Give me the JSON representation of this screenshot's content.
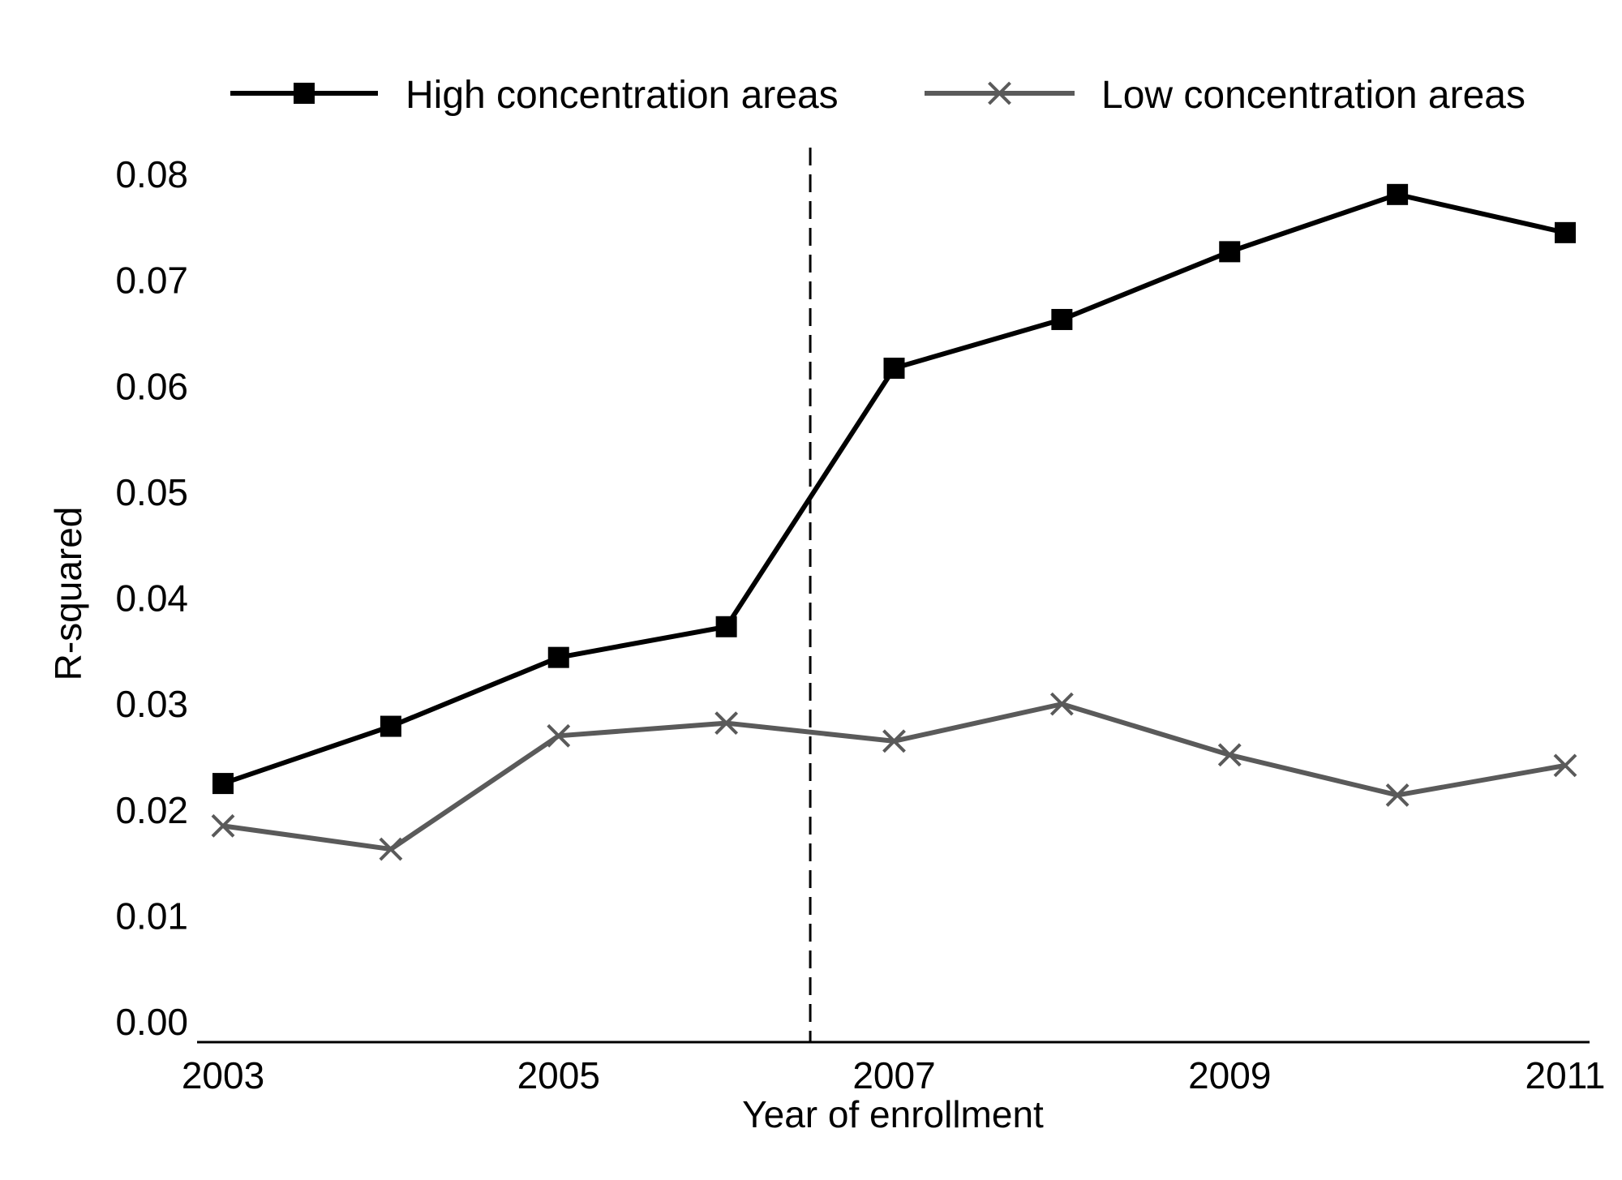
{
  "chart_data": {
    "type": "line",
    "title": "",
    "xlabel": "Year of enrollment",
    "ylabel": "R-squared",
    "x": [
      2003,
      2004,
      2005,
      2006,
      2007,
      2008,
      2009,
      2010,
      2011
    ],
    "xlim": [
      2003,
      2011
    ],
    "xticks": [
      2003,
      2005,
      2007,
      2009,
      2011
    ],
    "xtick_labels": [
      "2003",
      "2005",
      "2007",
      "2009",
      "2011"
    ],
    "ylim": [
      0,
      0.08
    ],
    "yticks": [
      0,
      0.01,
      0.02,
      0.03,
      0.04,
      0.05,
      0.06,
      0.07,
      0.08
    ],
    "ytick_labels": [
      "0.00",
      "0.01",
      "0.02",
      "0.03",
      "0.04",
      "0.05",
      "0.06",
      "0.07",
      "0.08"
    ],
    "grid": false,
    "legend_position": "top",
    "vertical_reference_line": {
      "x": 2006.5,
      "style": "dashed",
      "color": "#000000"
    },
    "series": [
      {
        "name": "High concentration areas",
        "marker": "square",
        "color": "#000000",
        "values": [
          0.0225,
          0.0279,
          0.0344,
          0.0373,
          0.0617,
          0.0663,
          0.0727,
          0.0781,
          0.0745
        ]
      },
      {
        "name": "Low concentration areas",
        "marker": "x",
        "color": "#5a5a5a",
        "values": [
          0.0185,
          0.0163,
          0.027,
          0.0282,
          0.0265,
          0.03,
          0.0252,
          0.0214,
          0.0242
        ]
      }
    ]
  }
}
